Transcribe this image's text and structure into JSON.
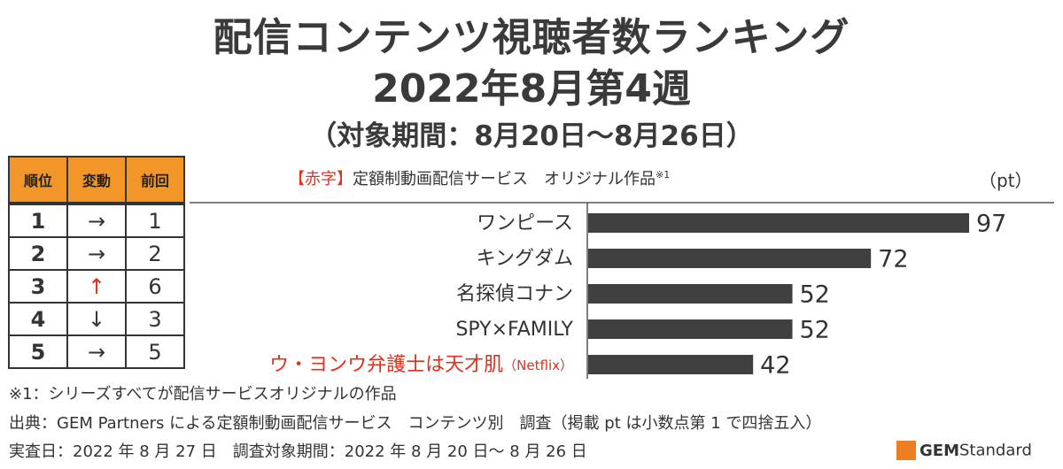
{
  "title": {
    "line1": "配信コンテンツ視聴者数ランキング",
    "line2": "2022年8月第4週",
    "line3": "（対象期間：8月20日～8月26日）"
  },
  "table": {
    "headers": [
      "順位",
      "変動",
      "前回"
    ],
    "rows": [
      {
        "rank": "1",
        "change": "→",
        "prev": "1",
        "up": false
      },
      {
        "rank": "2",
        "change": "→",
        "prev": "2",
        "up": false
      },
      {
        "rank": "3",
        "change": "↑",
        "prev": "6",
        "up": true
      },
      {
        "rank": "4",
        "change": "↓",
        "prev": "3",
        "up": false
      },
      {
        "rank": "5",
        "change": "→",
        "prev": "5",
        "up": false
      }
    ]
  },
  "legend_note": {
    "bracket_open": "【",
    "red_word": "赤字",
    "bracket_close": "】",
    "text": "定額制動画配信サービス　オリジナル作品",
    "sup": "※1"
  },
  "unit": "（pt）",
  "chart_data": {
    "type": "bar",
    "orientation": "horizontal",
    "categories": [
      "ワンピース",
      "キングダム",
      "名探偵コナン",
      "SPY×FAMILY",
      "ウ・ヨンウ弁護士は天才肌"
    ],
    "category_suffix": [
      "",
      "",
      "",
      "",
      "（Netflix）"
    ],
    "category_red": [
      false,
      false,
      false,
      false,
      true
    ],
    "values": [
      97,
      72,
      52,
      52,
      42
    ],
    "unit": "pt",
    "bar_color": "#404040",
    "red_color": "#e0301e"
  },
  "notes": {
    "note1": "※1：シリーズすべてが配信サービスオリジナルの作品",
    "source": "出典：GEM Partners による定額制動画配信サービス　コンテンツ別　調査（掲載 pt は小数点第 1 で四捨五入）",
    "dates": "実査日：2022 年 8 月 27 日　調査対象期間：2022 年 8 月 20 日～ 8 月 26 日"
  },
  "logo": {
    "gem": "GEM",
    "standard": "Standard",
    "color": "#ee7e22"
  }
}
